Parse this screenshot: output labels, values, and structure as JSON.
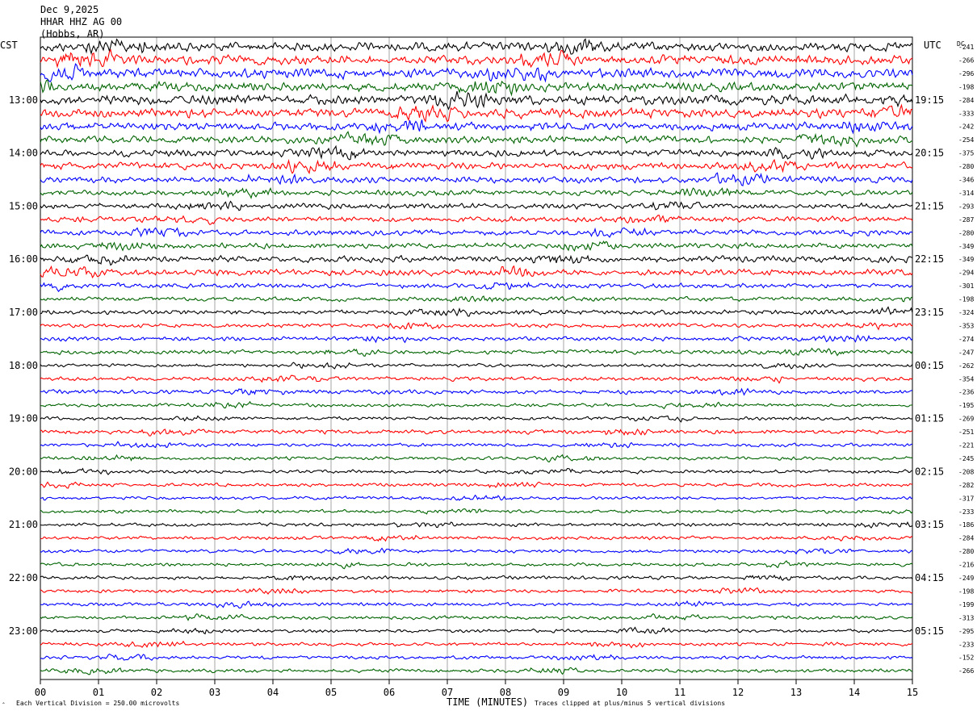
{
  "header": {
    "date": "Dec 9,2025",
    "station": "HHAR HHZ AG 00",
    "location": "(Hobbs, AR)"
  },
  "left_zone": "CST",
  "right_zone": "UTC",
  "dc_header": "DC",
  "footer": {
    "scale_note": "Each Vertical Division =  250.00 microvolts",
    "clip_note": "Traces clipped at plus/minus 5 vertical divisions",
    "corner_mark": "ˆ"
  },
  "colors": {
    "trace_cycle": [
      "#000000",
      "#ff0000",
      "#0000ff",
      "#006400"
    ],
    "grid": "#000000",
    "background": "#ffffff"
  },
  "chart_data": {
    "type": "line",
    "title": "Dec 9,2025 HHAR HHZ AG 00 (Hobbs, AR)",
    "xlabel": "TIME (MINUTES)",
    "xlim": [
      0,
      15
    ],
    "x_ticks": [
      "00",
      "01",
      "02",
      "03",
      "04",
      "05",
      "06",
      "07",
      "08",
      "09",
      "10",
      "11",
      "12",
      "13",
      "14",
      "15"
    ],
    "trace_count": 48,
    "minutes_per_trace": 15,
    "left_hour_labels": [
      "13:00",
      "14:00",
      "15:00",
      "16:00",
      "17:00",
      "18:00",
      "19:00",
      "20:00",
      "21:00",
      "22:00",
      "23:00"
    ],
    "right_hour_labels": [
      "19:15",
      "20:15",
      "21:15",
      "22:15",
      "23:15",
      "00:15",
      "01:15",
      "02:15",
      "03:15",
      "04:15",
      "05:15"
    ],
    "dc_offsets": [
      -241,
      -266,
      -296,
      -198,
      -284,
      -333,
      -242,
      -254,
      -375,
      -280,
      -346,
      -314,
      -293,
      -287,
      -280,
      -349,
      -349,
      -294,
      -301,
      -198,
      -324,
      -353,
      -274,
      -247,
      -262,
      -354,
      -236,
      -195,
      -269,
      -251,
      -221,
      -245,
      -208,
      -282,
      -317,
      -233,
      -186,
      -284,
      -280,
      -216,
      -249,
      -198,
      -199,
      -313,
      -295,
      -233,
      -152,
      -266
    ],
    "trace_amplitude_divisions": [
      1.3,
      1.4,
      1.4,
      1.3,
      1.4,
      1.3,
      1.2,
      1.1,
      1.0,
      1.0,
      0.9,
      0.8,
      0.8,
      0.8,
      0.8,
      0.8,
      0.9,
      0.9,
      0.7,
      0.6,
      0.7,
      0.6,
      0.6,
      0.6,
      0.5,
      0.6,
      0.6,
      0.5,
      0.5,
      0.6,
      0.5,
      0.5,
      0.5,
      0.5,
      0.5,
      0.5,
      0.5,
      0.5,
      0.5,
      0.5,
      0.5,
      0.5,
      0.5,
      0.5,
      0.5,
      0.5,
      0.5,
      0.5
    ],
    "scale_microvolts_per_division": 250.0,
    "clip_divisions": 5,
    "grid": true
  }
}
